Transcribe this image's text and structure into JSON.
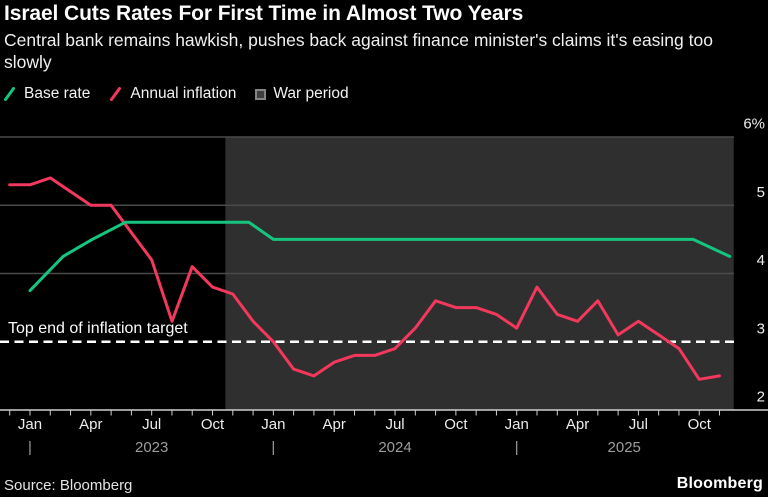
{
  "header": {
    "title": "Israel Cuts Rates For First Time in Almost Two Years",
    "subtitle": "Central bank remains hawkish, pushes back against finance minister's claims it's easing too slowly"
  },
  "legend": {
    "items": [
      {
        "label": "Base rate",
        "marker": "line",
        "color": "#15c57f"
      },
      {
        "label": "Annual inflation",
        "marker": "line",
        "color": "#f2385c"
      },
      {
        "label": "War period",
        "marker": "box",
        "fill": "#3e3e3e",
        "border": "#858585"
      }
    ]
  },
  "chart_data": {
    "type": "line",
    "title": "Israel Cuts Rates For First Time in Almost Two Years",
    "background": "#000000",
    "war_shading_color": "#2f2f2f",
    "gridline_color": "#4a4a4a",
    "y_axis": {
      "min": 2,
      "max": 6,
      "unit": "%",
      "tick_labels": [
        "2",
        "3",
        "4",
        "5",
        "6%"
      ],
      "side": "right"
    },
    "x_axis": {
      "month_tick_labels": [
        "Jan",
        "Apr",
        "Jul",
        "Oct",
        "Jan",
        "Apr",
        "Jul",
        "Oct",
        "Jan",
        "Apr",
        "Jul",
        "Oct"
      ],
      "year_labels": [
        "2023",
        "2024",
        "2025"
      ],
      "year_divider_glyph": "|",
      "range_start": "2022-12-01",
      "range_end": "2025-11-22"
    },
    "target_line": {
      "label": "Top end of inflation target",
      "value": 3,
      "style": "dashed-white"
    },
    "war_period": {
      "label": "War period",
      "start": "2023-10-20",
      "end": "2025-11-22"
    },
    "series": [
      {
        "name": "Base rate",
        "color": "#15c57f",
        "points": [
          [
            "2023-01-01",
            3.75
          ],
          [
            "2023-02-20",
            4.25
          ],
          [
            "2023-04-03",
            4.5
          ],
          [
            "2023-05-22",
            4.75
          ],
          [
            "2023-11-25",
            4.75
          ],
          [
            "2024-01-01",
            4.5
          ],
          [
            "2025-09-22",
            4.5
          ],
          [
            "2025-11-16",
            4.25
          ]
        ]
      },
      {
        "name": "Annual inflation",
        "color": "#f2385c",
        "points": [
          [
            "2022-12-01",
            5.3
          ],
          [
            "2023-01-01",
            5.3
          ],
          [
            "2023-02-01",
            5.4
          ],
          [
            "2023-03-01",
            5.2
          ],
          [
            "2023-04-01",
            5.0
          ],
          [
            "2023-05-01",
            5.0
          ],
          [
            "2023-06-01",
            4.6
          ],
          [
            "2023-07-01",
            4.2
          ],
          [
            "2023-08-01",
            3.3
          ],
          [
            "2023-09-01",
            4.1
          ],
          [
            "2023-10-01",
            3.8
          ],
          [
            "2023-11-01",
            3.7
          ],
          [
            "2023-12-01",
            3.3
          ],
          [
            "2024-01-01",
            3.0
          ],
          [
            "2024-02-01",
            2.6
          ],
          [
            "2024-03-01",
            2.5
          ],
          [
            "2024-04-01",
            2.7
          ],
          [
            "2024-05-01",
            2.8
          ],
          [
            "2024-06-01",
            2.8
          ],
          [
            "2024-07-01",
            2.9
          ],
          [
            "2024-08-01",
            3.2
          ],
          [
            "2024-09-01",
            3.6
          ],
          [
            "2024-10-01",
            3.5
          ],
          [
            "2024-11-01",
            3.5
          ],
          [
            "2024-12-01",
            3.4
          ],
          [
            "2025-01-01",
            3.2
          ],
          [
            "2025-02-01",
            3.8
          ],
          [
            "2025-03-01",
            3.4
          ],
          [
            "2025-04-01",
            3.3
          ],
          [
            "2025-05-01",
            3.6
          ],
          [
            "2025-06-01",
            3.1
          ],
          [
            "2025-07-01",
            3.3
          ],
          [
            "2025-08-01",
            3.1
          ],
          [
            "2025-09-01",
            2.9
          ],
          [
            "2025-10-01",
            2.45
          ],
          [
            "2025-11-01",
            2.5
          ]
        ]
      }
    ]
  },
  "footer": {
    "source": "Source: Bloomberg",
    "logo": "Bloomberg"
  }
}
